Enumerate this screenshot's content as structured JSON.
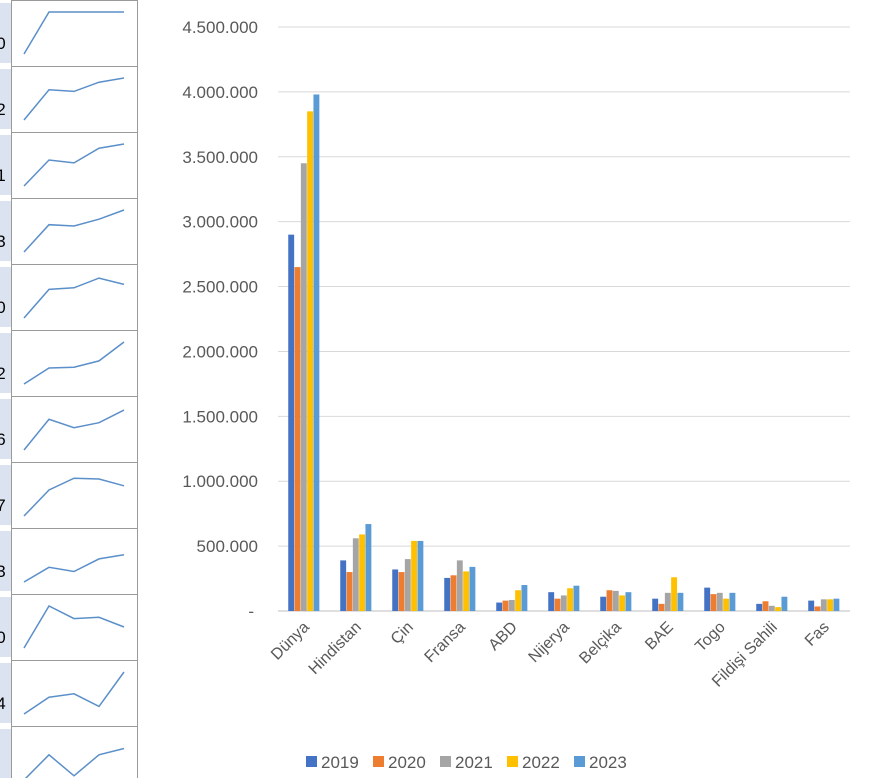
{
  "sparkline_edge_digits": [
    "0",
    "2",
    "1",
    "3",
    "0",
    "2",
    "6",
    "7",
    "3",
    "0",
    "4"
  ],
  "sparklines": [
    [
      0.0,
      1.0,
      1.0,
      1.0,
      1.0
    ],
    [
      0.0,
      0.72,
      0.68,
      0.9,
      1.0
    ],
    [
      0.0,
      0.62,
      0.55,
      0.9,
      1.0
    ],
    [
      0.0,
      0.65,
      0.62,
      0.78,
      1.0
    ],
    [
      0.0,
      0.68,
      0.72,
      0.95,
      0.8
    ],
    [
      0.0,
      0.38,
      0.4,
      0.55,
      1.0
    ],
    [
      0.0,
      0.73,
      0.53,
      0.65,
      0.95
    ],
    [
      0.0,
      0.62,
      0.9,
      0.88,
      0.72
    ],
    [
      0.0,
      0.35,
      0.25,
      0.55,
      0.65
    ],
    [
      0.0,
      1.0,
      0.7,
      0.73,
      0.5
    ],
    [
      0.0,
      0.4,
      0.48,
      0.18,
      1.0
    ],
    [
      0.0,
      0.6,
      0.1,
      0.6,
      0.75
    ]
  ],
  "chart_data": {
    "type": "bar",
    "title": "",
    "xlabel": "",
    "ylabel": "",
    "ylim": [
      0,
      4500000
    ],
    "yticks": [
      {
        "value": 0,
        "label": "-"
      },
      {
        "value": 500000,
        "label": "500.000"
      },
      {
        "value": 1000000,
        "label": "1.000.000"
      },
      {
        "value": 1500000,
        "label": "1.500.000"
      },
      {
        "value": 2000000,
        "label": "2.000.000"
      },
      {
        "value": 2500000,
        "label": "2.500.000"
      },
      {
        "value": 3000000,
        "label": "3.000.000"
      },
      {
        "value": 3500000,
        "label": "3.500.000"
      },
      {
        "value": 4000000,
        "label": "4.000.000"
      },
      {
        "value": 4500000,
        "label": "4.500.000"
      }
    ],
    "grid": true,
    "legend": "bottom",
    "categories": [
      "Dünya",
      "Hindistan",
      "Çin",
      "Fransa",
      "ABD",
      "Nijerya",
      "Belçika",
      "BAE",
      "Togo",
      "Fildişi Sahili",
      "Fas"
    ],
    "series": [
      {
        "name": "2019",
        "color": "#4472C4",
        "values": [
          2900000,
          390000,
          320000,
          255000,
          65000,
          145000,
          110000,
          95000,
          180000,
          55000,
          80000
        ]
      },
      {
        "name": "2020",
        "color": "#ED7D31",
        "values": [
          2650000,
          300000,
          300000,
          275000,
          80000,
          95000,
          160000,
          55000,
          130000,
          75000,
          35000
        ]
      },
      {
        "name": "2021",
        "color": "#A5A5A5",
        "values": [
          3450000,
          560000,
          400000,
          390000,
          85000,
          120000,
          155000,
          140000,
          140000,
          40000,
          90000
        ]
      },
      {
        "name": "2022",
        "color": "#FFC000",
        "values": [
          3850000,
          590000,
          540000,
          305000,
          160000,
          175000,
          120000,
          260000,
          95000,
          30000,
          90000
        ]
      },
      {
        "name": "2023",
        "color": "#5B9BD5",
        "values": [
          3980000,
          670000,
          540000,
          340000,
          200000,
          195000,
          145000,
          140000,
          140000,
          110000,
          95000
        ]
      }
    ]
  }
}
